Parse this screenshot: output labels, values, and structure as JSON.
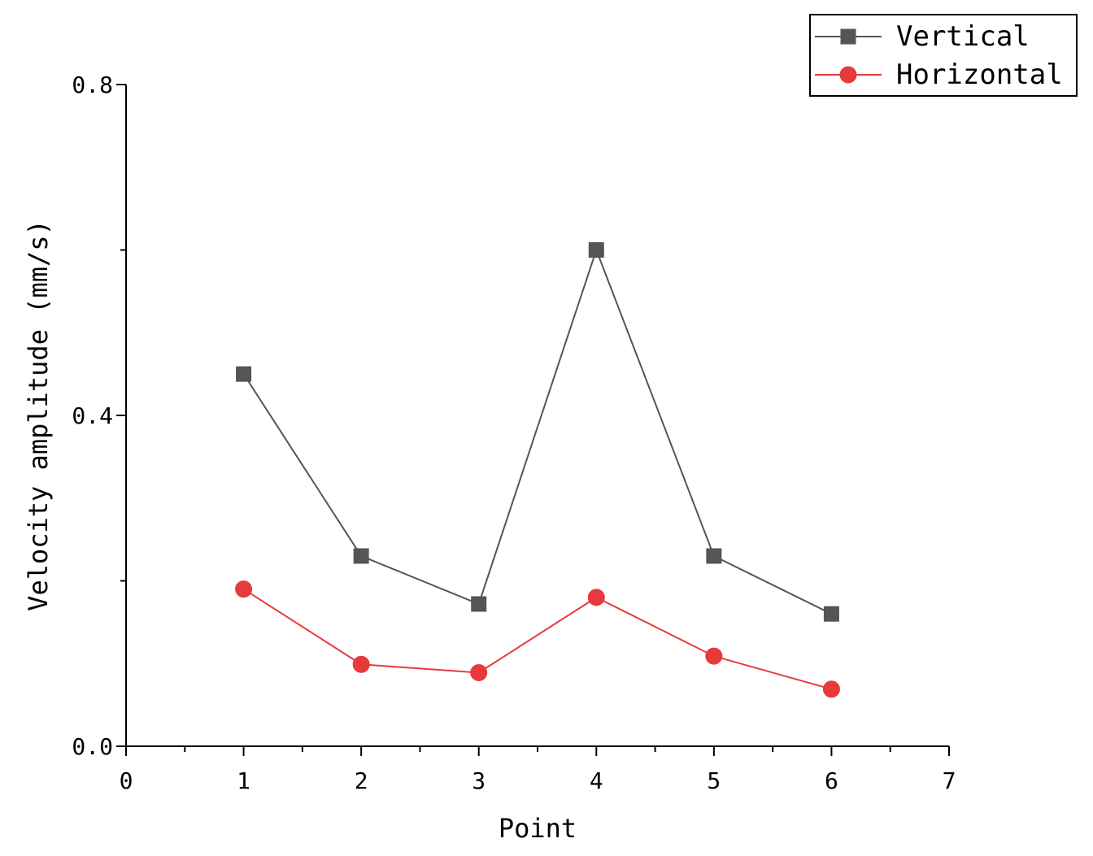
{
  "chart_data": {
    "type": "line",
    "title": "",
    "xlabel": "Point",
    "ylabel": "Velocity amplitude (mm/s)",
    "xlim": [
      0,
      7
    ],
    "ylim": [
      0.0,
      0.8
    ],
    "x_ticks": [
      0,
      1,
      2,
      3,
      4,
      5,
      6,
      7
    ],
    "x_tick_labels": [
      "0",
      "1",
      "2",
      "3",
      "4",
      "5",
      "6",
      "7"
    ],
    "x_minor_step": 0.5,
    "y_ticks": [
      0.0,
      0.2,
      0.4,
      0.6,
      0.8
    ],
    "y_tick_labels": [
      "0.0",
      "",
      "0.4",
      "",
      "0.8"
    ],
    "grid": false,
    "legend_position": "top-right",
    "x": [
      1,
      2,
      3,
      4,
      5,
      6
    ],
    "series": [
      {
        "name": "Vertical",
        "color": "#555555",
        "marker": "square",
        "values": [
          0.45,
          0.23,
          0.172,
          0.6,
          0.23,
          0.16
        ]
      },
      {
        "name": "Horizontal",
        "color": "#e8393c",
        "marker": "circle",
        "values": [
          0.19,
          0.099,
          0.089,
          0.18,
          0.109,
          0.069
        ]
      }
    ]
  }
}
